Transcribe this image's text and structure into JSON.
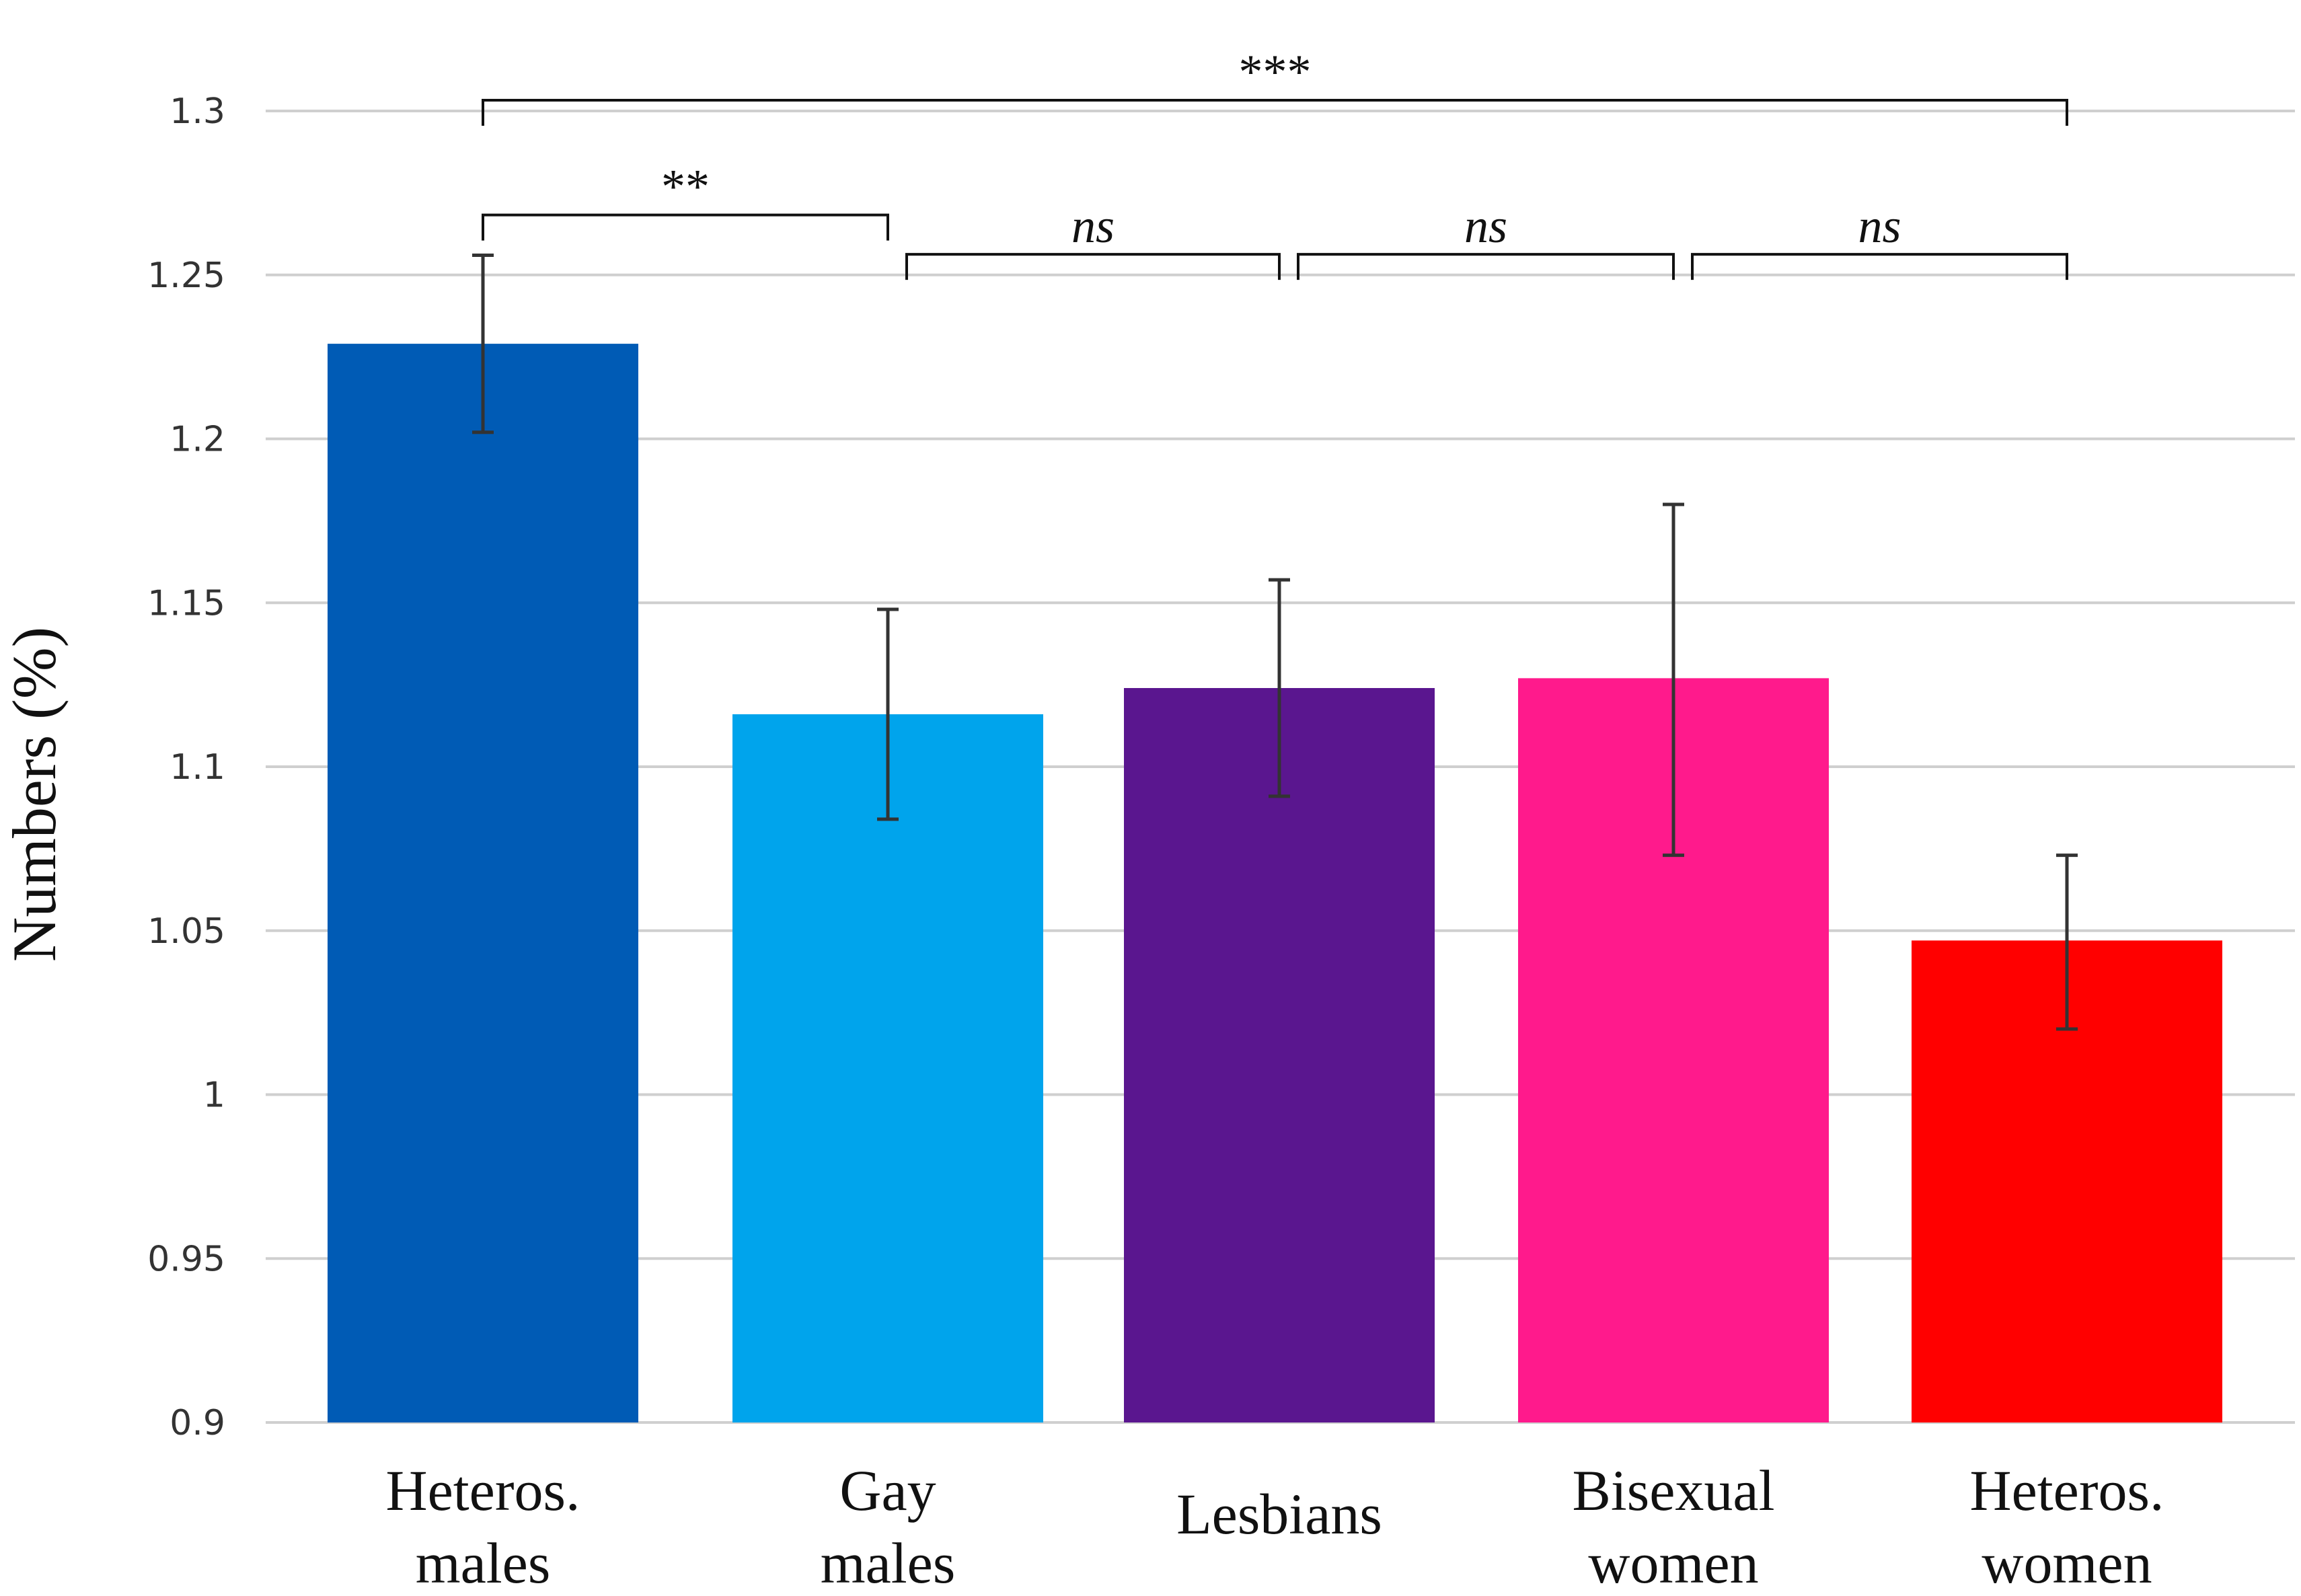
{
  "chart_data": {
    "type": "bar",
    "title": "",
    "xlabel": "",
    "ylabel": "Numbers (%)",
    "ylim": [
      0.9,
      1.3
    ],
    "yticks": [
      0.9,
      0.95,
      1,
      1.05,
      1.1,
      1.15,
      1.2,
      1.25,
      1.3
    ],
    "ytick_labels": [
      "0.9",
      "0.95",
      "1",
      "1.05",
      "1.1",
      "1.15",
      "1.2",
      "1.25",
      "1.3"
    ],
    "grid": true,
    "categories": [
      [
        "Heteros.",
        "males"
      ],
      [
        "Gay",
        "males"
      ],
      [
        "Lesbians"
      ],
      [
        "Bisexual",
        "women"
      ],
      [
        "Heteros.",
        "women"
      ]
    ],
    "values": [
      1.229,
      1.116,
      1.124,
      1.127,
      1.047
    ],
    "error_low": [
      1.202,
      1.084,
      1.091,
      1.073,
      1.02
    ],
    "error_high": [
      1.256,
      1.148,
      1.157,
      1.18,
      1.073
    ],
    "colors": [
      "#005BB5",
      "#00A4EC",
      "#5A168F",
      "#FF1A8C",
      "#FF0000"
    ],
    "significance": [
      {
        "from": 0,
        "to": 4,
        "label": "***",
        "italic": false,
        "level": 1.3
      },
      {
        "from": 0,
        "to": 1,
        "label": "**",
        "italic": false,
        "level": 1.265
      },
      {
        "from": 1,
        "to": 2,
        "label": "ns",
        "italic": true,
        "level": 1.253
      },
      {
        "from": 2,
        "to": 3,
        "label": "ns",
        "italic": true,
        "level": 1.253
      },
      {
        "from": 3,
        "to": 4,
        "label": "ns",
        "italic": true,
        "level": 1.253
      }
    ]
  }
}
